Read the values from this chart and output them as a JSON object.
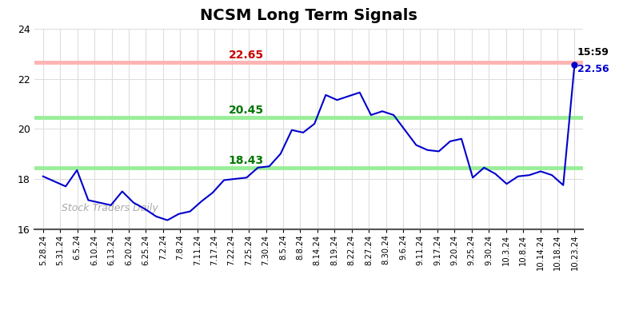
{
  "title": "NCSM Long Term Signals",
  "watermark": "Stock Traders Daily",
  "x_labels": [
    "5.28.24",
    "5.31.24",
    "6.5.24",
    "6.10.24",
    "6.13.24",
    "6.20.24",
    "6.25.24",
    "7.2.24",
    "7.8.24",
    "7.11.24",
    "7.17.24",
    "7.22.24",
    "7.25.24",
    "7.30.24",
    "8.5.24",
    "8.8.24",
    "8.14.24",
    "8.19.24",
    "8.22.24",
    "8.27.24",
    "8.30.24",
    "9.6.24",
    "9.11.24",
    "9.17.24",
    "9.20.24",
    "9.25.24",
    "9.30.24",
    "10.3.24",
    "10.8.24",
    "10.14.24",
    "10.18.24",
    "10.23.24"
  ],
  "prices": [
    18.1,
    17.9,
    17.7,
    18.35,
    17.15,
    17.05,
    16.95,
    17.5,
    17.05,
    16.8,
    16.5,
    16.35,
    16.6,
    16.7,
    17.1,
    17.45,
    17.95,
    18.0,
    18.05,
    18.45,
    18.5,
    19.0,
    19.95,
    19.85,
    20.2,
    21.35,
    21.15,
    21.3,
    21.45,
    20.55,
    20.7,
    20.55,
    19.95,
    19.35,
    19.15,
    19.1,
    19.5,
    19.6,
    18.05,
    18.45,
    18.2,
    17.8,
    18.1,
    18.15,
    18.3,
    18.15,
    17.75,
    22.56
  ],
  "line_color": "#0000cc",
  "hline_red": 22.65,
  "hline_red_color": "#ffb3b3",
  "hline_red_label_color": "#cc0000",
  "hline_green1": 20.45,
  "hline_green2": 18.43,
  "hline_green_color": "#99ee99",
  "hline_green_label_color": "#007700",
  "ylim": [
    16,
    24
  ],
  "yticks": [
    16,
    18,
    20,
    22,
    24
  ],
  "last_label_time": "15:59",
  "last_label_value": "22.56",
  "last_label_color": "#0000cc",
  "watermark_color": "#aaaaaa",
  "bg_color": "#ffffff",
  "grid_color": "#dddddd",
  "annotation_x_label": "20.45",
  "annotation_x2_label": "18.43",
  "annotation_red_label": "22.65"
}
